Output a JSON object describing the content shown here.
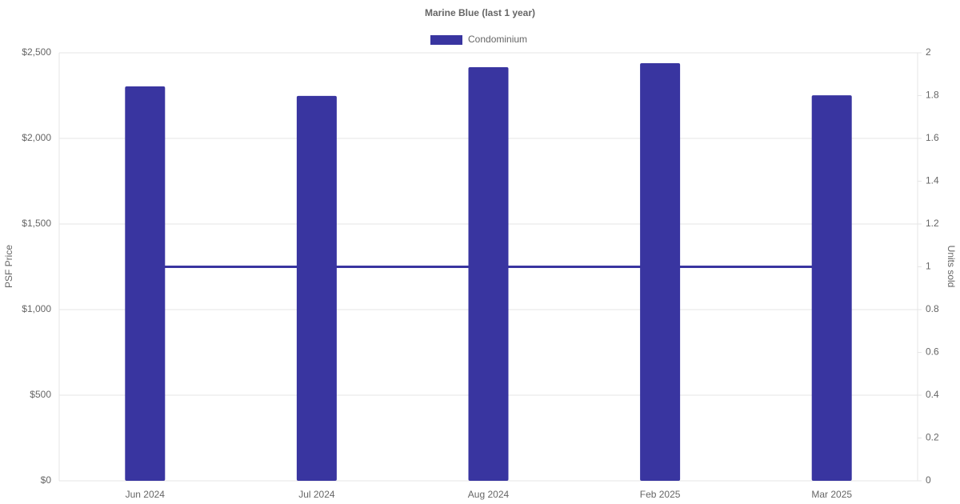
{
  "chart_data": {
    "type": "bar",
    "title": "Marine Blue (last 1 year)",
    "categories": [
      "Jun 2024",
      "Jul 2024",
      "Aug 2024",
      "Feb 2025",
      "Mar 2025"
    ],
    "series": [
      {
        "name": "Condominium",
        "type": "bar",
        "color": "#3935a0",
        "values": [
          2304,
          2248,
          2416,
          2439,
          2252
        ]
      },
      {
        "type": "line",
        "axis": "y2",
        "color": "#3935a0",
        "values": [
          1,
          1,
          1,
          1,
          1
        ]
      }
    ],
    "ylabel": "PSF Price",
    "y2label": "Units sold",
    "ylim": [
      0,
      2500
    ],
    "yticks": [
      {
        "value": 0,
        "label": "$0"
      },
      {
        "value": 500,
        "label": "$500"
      },
      {
        "value": 1000,
        "label": "$1,000"
      },
      {
        "value": 1500,
        "label": "$1,500"
      },
      {
        "value": 2000,
        "label": "$2,000"
      },
      {
        "value": 2500,
        "label": "$2,500"
      }
    ],
    "y2lim": [
      0,
      2
    ],
    "y2ticks": [
      0,
      0.2,
      0.4,
      0.6,
      0.8,
      1,
      1.2,
      1.4,
      1.6,
      1.8,
      2
    ],
    "grid": true,
    "legend": "top"
  }
}
